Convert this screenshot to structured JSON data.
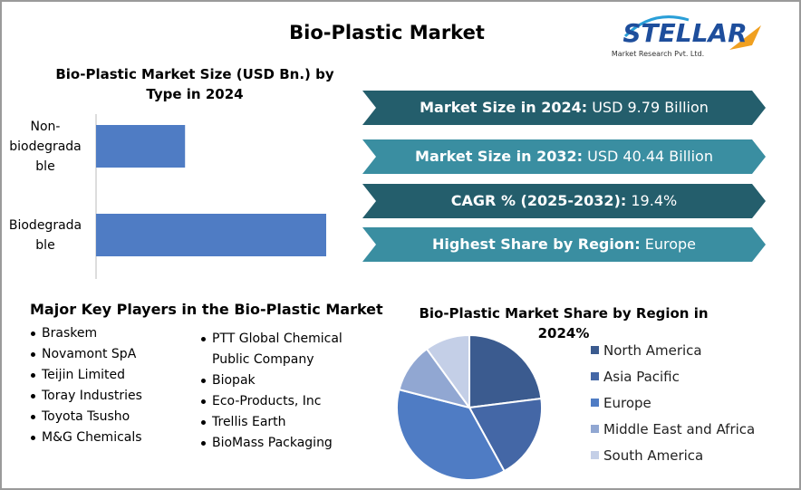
{
  "title": "Bio-Plastic Market",
  "logo": {
    "name": "STELLAR",
    "tagline": "Market Research Pvt. Ltd."
  },
  "highlights": [
    {
      "label": "Market Size in 2024:",
      "value": "USD 9.79 Billion"
    },
    {
      "label": "Market Size in 2032:",
      "value": "USD 40.44 Billion"
    },
    {
      "label": "CAGR % (2025-2032):",
      "value": "19.4%"
    },
    {
      "label": "Highest Share by Region:",
      "value": "Europe"
    }
  ],
  "key_players": {
    "title": "Major Key Players in the Bio-Plastic Market",
    "column1": [
      "Braskem",
      "Novamont SpA",
      "Teijin Limited",
      "Toray Industries",
      "Toyota Tsusho",
      "M&G Chemicals"
    ],
    "column2": [
      "PTT Global Chemical Public Company",
      "Biopak",
      "Eco-Products, Inc",
      "Trellis Earth",
      "BioMass Packaging"
    ]
  },
  "chart_data": [
    {
      "type": "bar",
      "orientation": "horizontal",
      "title": "Bio-Plastic Market Size (USD Bn.) by Type in 2024",
      "categories": [
        "Non-biodegradable",
        "Biodegradable"
      ],
      "values": [
        2.73,
        7.06
      ],
      "color": "#4f7cc4"
    },
    {
      "type": "pie",
      "title": "Bio-Plastic Market Share by Region in 2024%",
      "categories": [
        "North America",
        "Asia Pacific",
        "Europe",
        "Middle East and Africa",
        "South America"
      ],
      "values": [
        23,
        19,
        37,
        11,
        10
      ],
      "colors": [
        "#3b5b8f",
        "#4467a6",
        "#4f7cc4",
        "#91a7d2",
        "#c4cfe7"
      ]
    }
  ]
}
